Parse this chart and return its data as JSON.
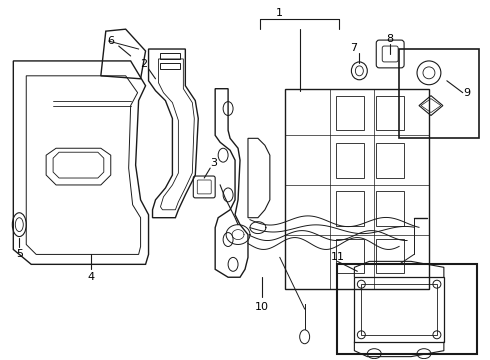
{
  "bg_color": "#ffffff",
  "line_color": "#1a1a1a",
  "label_color": "#000000",
  "fig_width": 4.9,
  "fig_height": 3.6,
  "dpi": 100
}
